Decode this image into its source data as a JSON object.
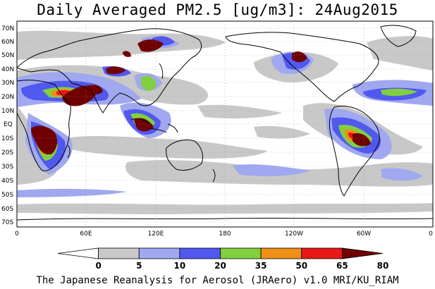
{
  "title": "Daily Averaged PM2.5 [ug/m3]: 24Aug2015",
  "footer": "The Japanese Reanalysis for Aerosol (JRAero) v1.0 MRI/KU_RIAM",
  "lat_labels": [
    "70N",
    "60N",
    "50N",
    "40N",
    "30N",
    "20N",
    "10N",
    "EQ",
    "10S",
    "20S",
    "30S",
    "40S",
    "50S",
    "60S",
    "70S"
  ],
  "lon_labels": [
    "0",
    "60E",
    "120E",
    "180",
    "120W",
    "60W",
    "0"
  ],
  "colorbar": {
    "ticks": [
      "0",
      "5",
      "10",
      "20",
      "35",
      "50",
      "65",
      "80"
    ],
    "colors": [
      "#ffffff",
      "#c8c8c8",
      "#a0a8f0",
      "#5058f0",
      "#80d040",
      "#f09018",
      "#e81818",
      "#700000"
    ]
  }
}
